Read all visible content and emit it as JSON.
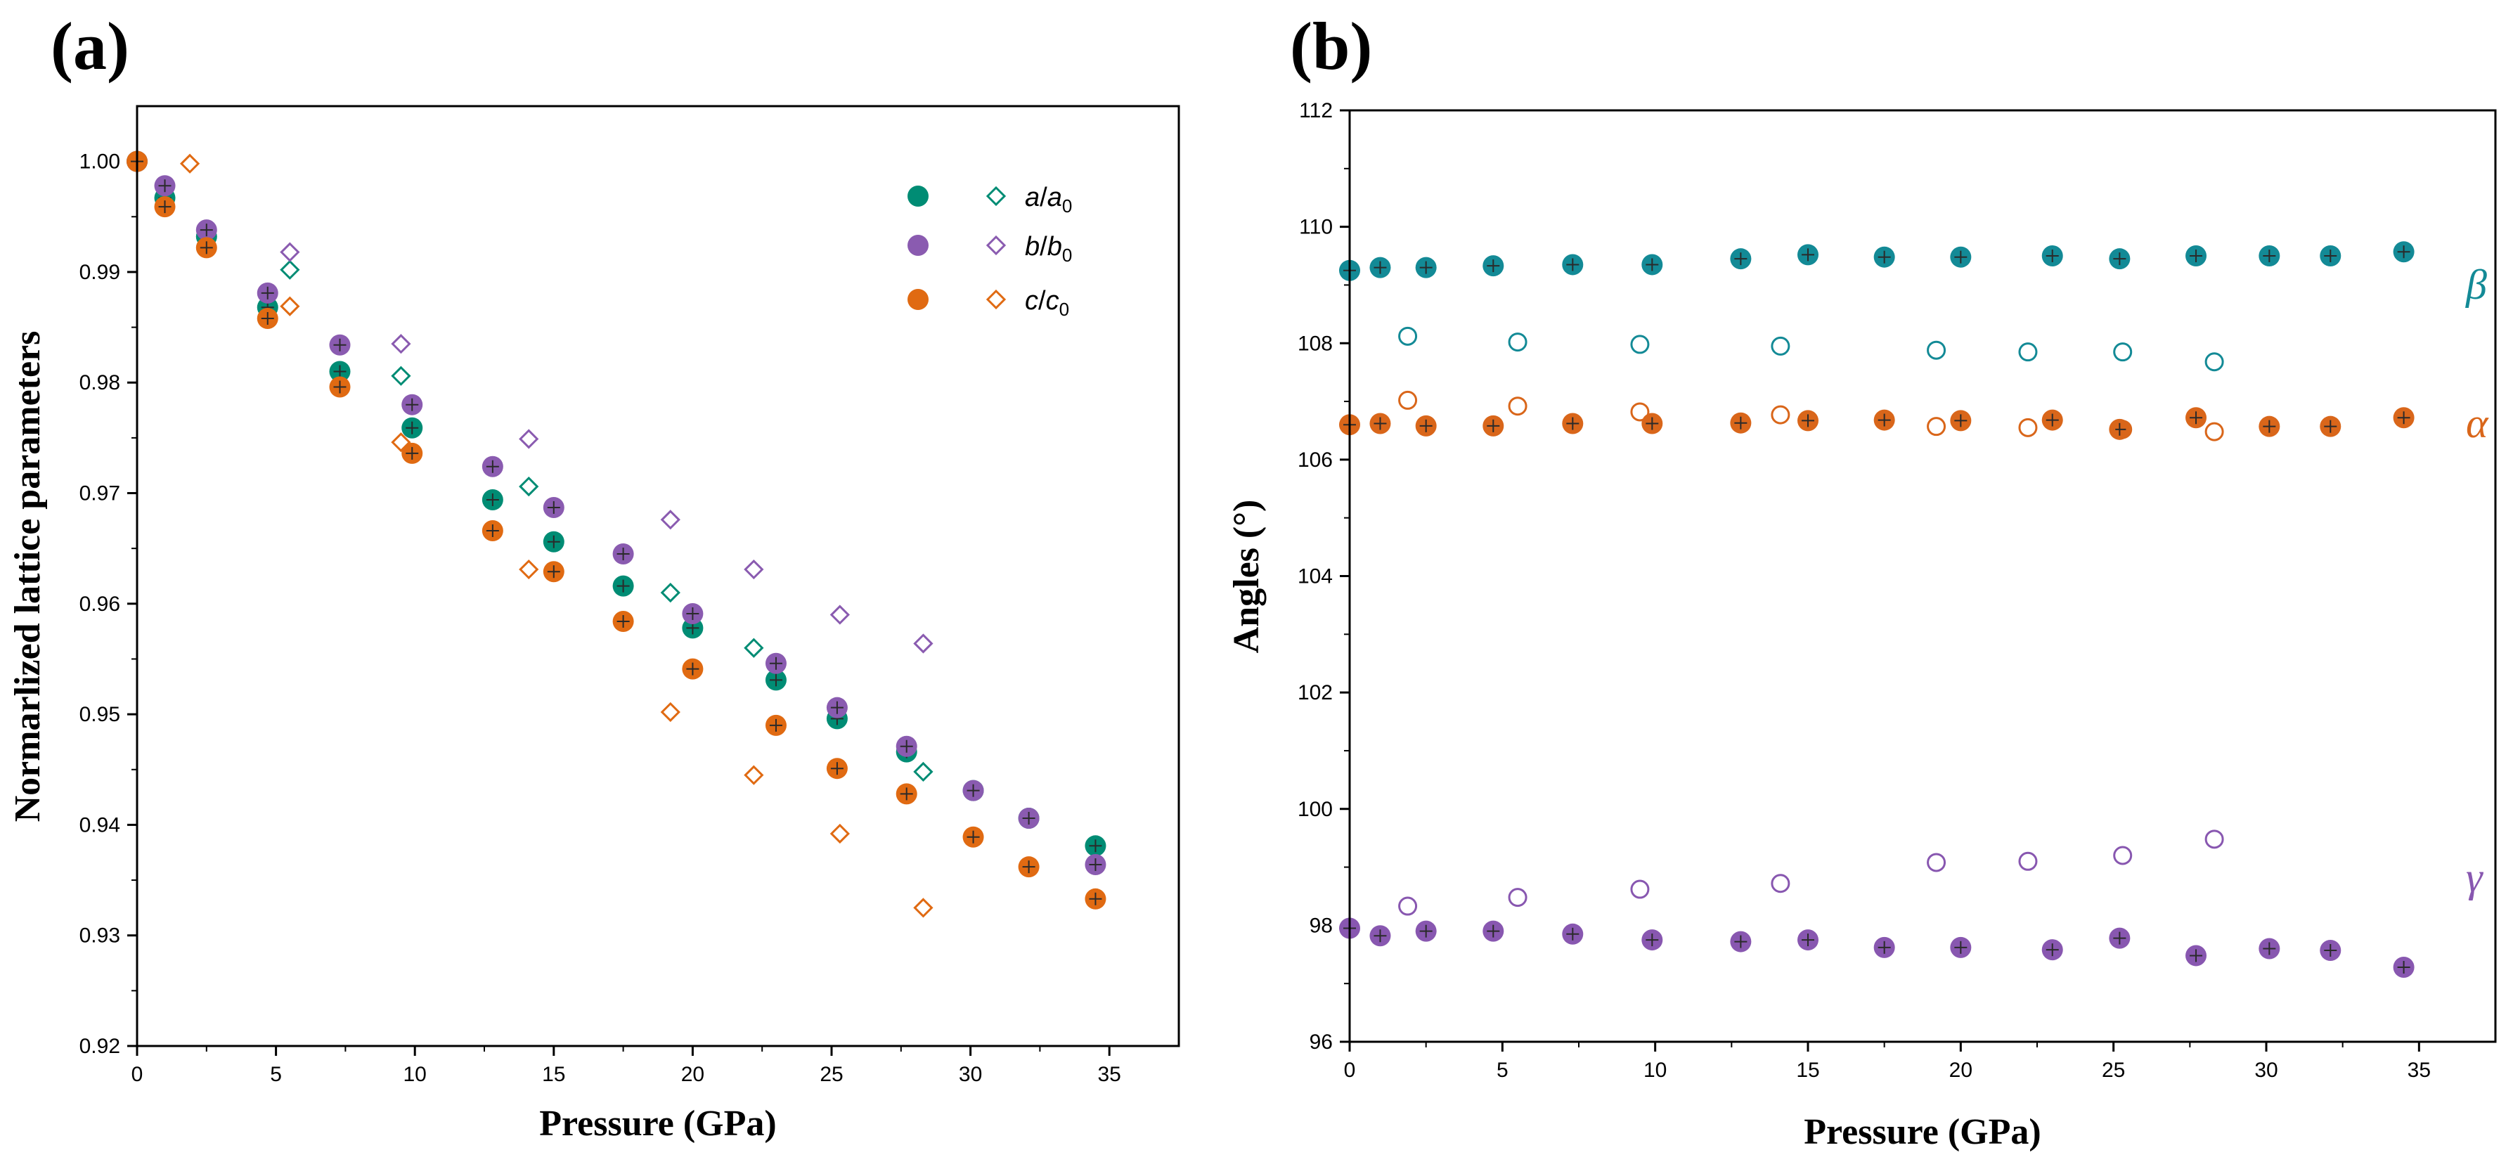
{
  "panel_labels": {
    "a": "(a)",
    "b": "(b)"
  },
  "legend": {
    "a_symbol": "a",
    "a_denom": "a",
    "a_sub": "0",
    "b_symbol": "b",
    "b_denom": "b",
    "b_sub": "0",
    "c_symbol": "c",
    "c_denom": "c",
    "c_sub": "0"
  },
  "angle_tags": {
    "beta": "β",
    "alpha": "α",
    "gamma": "γ"
  },
  "colors": {
    "teal": "#008c74",
    "purple": "#8a5bb0",
    "orange": "#e06a12",
    "blue_teal": "#138a96",
    "angle_orange": "#d9661a",
    "angle_purple": "#8857b0"
  },
  "chart_data": [
    {
      "type": "scatter",
      "title": "",
      "xlabel": "Pressure (GPa)",
      "ylabel": "Normarlized lattice parameters",
      "xlim": [
        0,
        37.5
      ],
      "ylim": [
        0.92,
        1.005
      ],
      "x_ticks": [
        0,
        5,
        10,
        15,
        20,
        25,
        30,
        35
      ],
      "x_tick_labels": [
        "0",
        "5",
        "10",
        "15",
        "20",
        "25",
        "30",
        "35"
      ],
      "y_ticks": [
        0.92,
        0.93,
        0.94,
        0.95,
        0.96,
        0.97,
        0.98,
        0.99,
        1.0
      ],
      "y_tick_labels": [
        "0.92",
        "0.93",
        "0.94",
        "0.95",
        "0.96",
        "0.97",
        "0.98",
        "0.99",
        "1.00"
      ],
      "series": [
        {
          "name": "a/a0 (filled)",
          "marker": "filled",
          "color_key": "teal",
          "x": [
            0,
            1.0,
            2.5,
            4.7,
            7.3,
            9.9,
            12.8,
            15.0,
            17.5,
            20.0,
            23.0,
            25.2,
            27.7,
            30.1,
            32.1,
            34.5
          ],
          "y": [
            1.0,
            0.9967,
            0.9932,
            0.9868,
            0.981,
            0.9759,
            0.9694,
            0.9656,
            0.9616,
            0.9578,
            0.9531,
            0.9496,
            0.9466,
            0.9431,
            0.9406,
            0.9381
          ]
        },
        {
          "name": "b/b0 (filled)",
          "marker": "filled",
          "color_key": "purple",
          "x": [
            0,
            1.0,
            2.5,
            4.7,
            7.3,
            9.9,
            12.8,
            15.0,
            17.5,
            20.0,
            23.0,
            25.2,
            27.7,
            30.1,
            32.1,
            34.5
          ],
          "y": [
            1.0,
            0.9978,
            0.9938,
            0.9881,
            0.9834,
            0.978,
            0.9724,
            0.9687,
            0.9645,
            0.9591,
            0.9546,
            0.9506,
            0.9471,
            0.9431,
            0.9406,
            0.9364
          ]
        },
        {
          "name": "c/c0 (filled)",
          "marker": "filled",
          "color_key": "orange",
          "x": [
            0,
            1.0,
            2.5,
            4.7,
            7.3,
            9.9,
            12.8,
            15.0,
            17.5,
            20.0,
            23.0,
            25.2,
            27.7,
            30.1,
            32.1,
            34.5
          ],
          "y": [
            1.0,
            0.9959,
            0.9922,
            0.9858,
            0.9796,
            0.9736,
            0.9666,
            0.9629,
            0.9584,
            0.9541,
            0.949,
            0.9451,
            0.9428,
            0.9389,
            0.9362,
            0.9333
          ]
        },
        {
          "name": "a/a0 (open)",
          "marker": "open-diamond",
          "color_key": "teal",
          "x": [
            5.5,
            9.5,
            14.1,
            19.2,
            22.2,
            28.3
          ],
          "y": [
            0.9902,
            0.9806,
            0.9706,
            0.961,
            0.956,
            0.9448
          ]
        },
        {
          "name": "b/b0 (open)",
          "marker": "open-diamond",
          "color_key": "purple",
          "x": [
            5.5,
            9.5,
            14.1,
            19.2,
            22.2,
            25.3,
            28.3
          ],
          "y": [
            0.9918,
            0.9835,
            0.9749,
            0.9676,
            0.9631,
            0.959,
            0.9564
          ]
        },
        {
          "name": "c/c0 (open)",
          "marker": "open-diamond",
          "color_key": "orange",
          "x": [
            1.9,
            5.5,
            9.5,
            14.1,
            19.2,
            22.2,
            25.3,
            28.3
          ],
          "y": [
            0.9998,
            0.9869,
            0.9746,
            0.9631,
            0.9502,
            0.9445,
            0.9392,
            0.9325
          ]
        }
      ]
    },
    {
      "type": "scatter",
      "title": "",
      "xlabel": "Pressure (GPa)",
      "ylabel": "Angles (°)",
      "xlim": [
        0,
        37.5
      ],
      "ylim": [
        96,
        112
      ],
      "x_ticks": [
        0,
        5,
        10,
        15,
        20,
        25,
        30,
        35
      ],
      "x_tick_labels": [
        "0",
        "5",
        "10",
        "15",
        "20",
        "25",
        "30",
        "35"
      ],
      "y_ticks": [
        96,
        98,
        100,
        102,
        104,
        106,
        108,
        110,
        112
      ],
      "y_tick_labels": [
        "96",
        "98",
        "100",
        "102",
        "104",
        "106",
        "108",
        "110",
        "112"
      ],
      "series": [
        {
          "name": "β (filled)",
          "marker": "filled",
          "color_key": "blue_teal",
          "x": [
            0,
            1.0,
            2.5,
            4.7,
            7.3,
            9.9,
            12.8,
            15.0,
            17.5,
            20.0,
            23.0,
            25.2,
            27.7,
            30.1,
            32.1,
            34.5
          ],
          "y": [
            109.25,
            109.3,
            109.3,
            109.33,
            109.35,
            109.35,
            109.45,
            109.52,
            109.48,
            109.48,
            109.5,
            109.45,
            109.5,
            109.5,
            109.5,
            109.57
          ]
        },
        {
          "name": "α (filled)",
          "marker": "filled",
          "color_key": "angle_orange",
          "x": [
            0,
            1.0,
            2.5,
            4.7,
            7.3,
            9.9,
            12.8,
            15.0,
            17.5,
            20.0,
            23.0,
            25.2,
            27.7,
            30.1,
            32.1,
            34.5
          ],
          "y": [
            106.6,
            106.62,
            106.58,
            106.58,
            106.62,
            106.62,
            106.63,
            106.67,
            106.68,
            106.67,
            106.68,
            106.52,
            106.72,
            106.57,
            106.57,
            106.72
          ]
        },
        {
          "name": "γ (filled)",
          "marker": "filled",
          "color_key": "angle_purple",
          "x": [
            0,
            1.0,
            2.5,
            4.7,
            7.3,
            9.9,
            12.8,
            15.0,
            17.5,
            20.0,
            23.0,
            25.2,
            27.7,
            30.1,
            32.1,
            34.5
          ],
          "y": [
            97.95,
            97.82,
            97.9,
            97.9,
            97.85,
            97.75,
            97.72,
            97.75,
            97.62,
            97.62,
            97.58,
            97.78,
            97.48,
            97.6,
            97.57,
            97.28
          ]
        },
        {
          "name": "β (open)",
          "marker": "open-circle",
          "color_key": "blue_teal",
          "x": [
            1.9,
            5.5,
            9.5,
            14.1,
            19.2,
            22.2,
            25.3,
            28.3
          ],
          "y": [
            108.12,
            108.02,
            107.98,
            107.95,
            107.88,
            107.85,
            107.85,
            107.68
          ]
        },
        {
          "name": "α (open)",
          "marker": "open-circle",
          "color_key": "angle_orange",
          "x": [
            1.9,
            5.5,
            9.5,
            14.1,
            19.2,
            22.2,
            25.3,
            28.3
          ],
          "y": [
            107.02,
            106.92,
            106.82,
            106.77,
            106.57,
            106.55,
            106.52,
            106.48
          ]
        },
        {
          "name": "γ (open)",
          "marker": "open-circle",
          "color_key": "angle_purple",
          "x": [
            1.9,
            5.5,
            9.5,
            14.1,
            19.2,
            22.2,
            25.3,
            28.3
          ],
          "y": [
            98.33,
            98.48,
            98.62,
            98.72,
            99.08,
            99.1,
            99.2,
            99.48
          ]
        }
      ]
    }
  ]
}
